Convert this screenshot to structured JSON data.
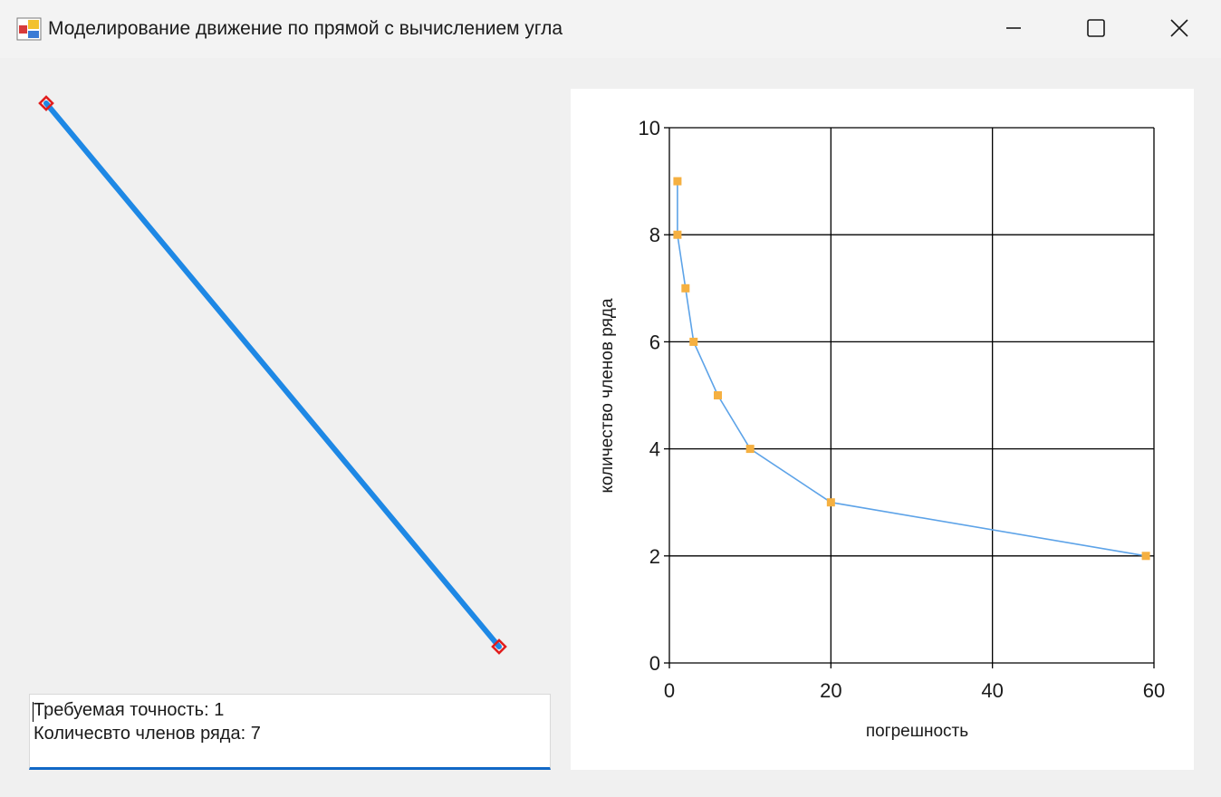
{
  "window": {
    "title": "Моделирование движение по прямой с вычислением угла",
    "icons": {
      "app": "windows-form-icon",
      "minimize": "minimize-icon",
      "maximize": "maximize-icon",
      "close": "close-icon"
    }
  },
  "info": {
    "line1": "Требуемая точность: 1",
    "line2": "Количесвто членов ряда: 7"
  },
  "colors": {
    "line": "#1e88e5",
    "endpoint": "#e11d1d",
    "series_line": "#5da3e8",
    "series_marker": "#f5b041",
    "grid": "#000000",
    "accent_underline": "#1168c6"
  },
  "chart_data": {
    "type": "line",
    "xlabel": "погрешность",
    "ylabel": "количество членов ряда",
    "xlim": [
      0,
      60
    ],
    "ylim": [
      0,
      10
    ],
    "x_ticks": [
      "0",
      "20",
      "40",
      "60"
    ],
    "y_ticks": [
      "0",
      "2",
      "4",
      "6",
      "8",
      "10"
    ],
    "grid": true,
    "series": [
      {
        "x": [
          1,
          1,
          2,
          3,
          6,
          10,
          20,
          59
        ],
        "y": [
          9,
          8,
          7,
          6,
          5,
          4,
          3,
          2
        ]
      }
    ]
  }
}
